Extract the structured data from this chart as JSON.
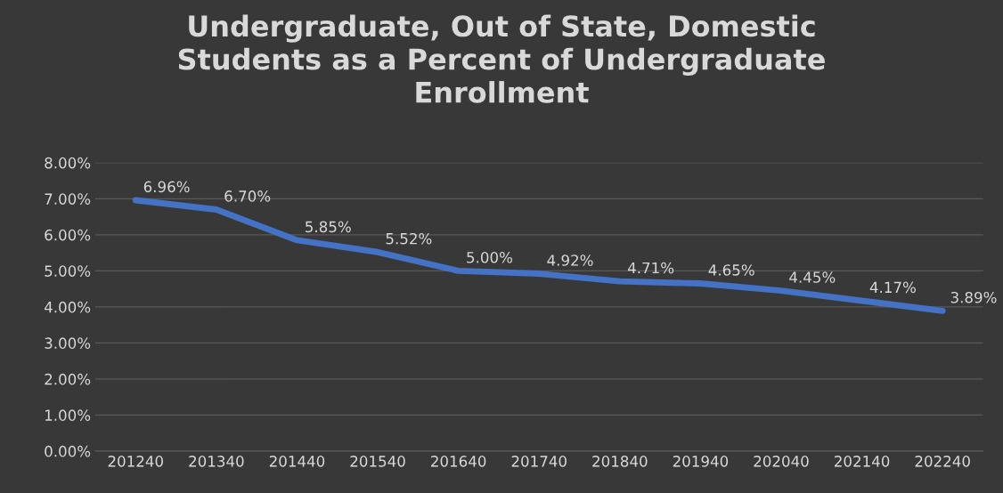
{
  "chart_data": {
    "type": "line",
    "title": "Undergraduate, Out of State, Domestic\nStudents as a Percent of Undergraduate\nEnrollment",
    "categories": [
      "201240",
      "201340",
      "201440",
      "201540",
      "201640",
      "201740",
      "201840",
      "201940",
      "202040",
      "202140",
      "202240"
    ],
    "series": [
      {
        "color": "#4472c4",
        "values": [
          6.96,
          6.7,
          5.85,
          5.52,
          5.0,
          4.92,
          4.71,
          4.65,
          4.45,
          4.17,
          3.89
        ],
        "value_labels": [
          "6.96%",
          "6.70%",
          "5.85%",
          "5.52%",
          "5.00%",
          "4.92%",
          "4.71%",
          "4.65%",
          "4.45%",
          "4.17%",
          "3.89%"
        ]
      }
    ],
    "ylim": [
      0,
      8
    ],
    "yticks": [
      {
        "value": 0,
        "label": "0.00%"
      },
      {
        "value": 1,
        "label": "1.00%"
      },
      {
        "value": 2,
        "label": "2.00%"
      },
      {
        "value": 3,
        "label": "3.00%"
      },
      {
        "value": 4,
        "label": "4.00%"
      },
      {
        "value": 5,
        "label": "5.00%"
      },
      {
        "value": 6,
        "label": "6.00%"
      },
      {
        "value": 7,
        "label": "7.00%"
      },
      {
        "value": 8,
        "label": "8.00%"
      }
    ],
    "grid": "y",
    "marker": "none",
    "line_style": "solid"
  }
}
